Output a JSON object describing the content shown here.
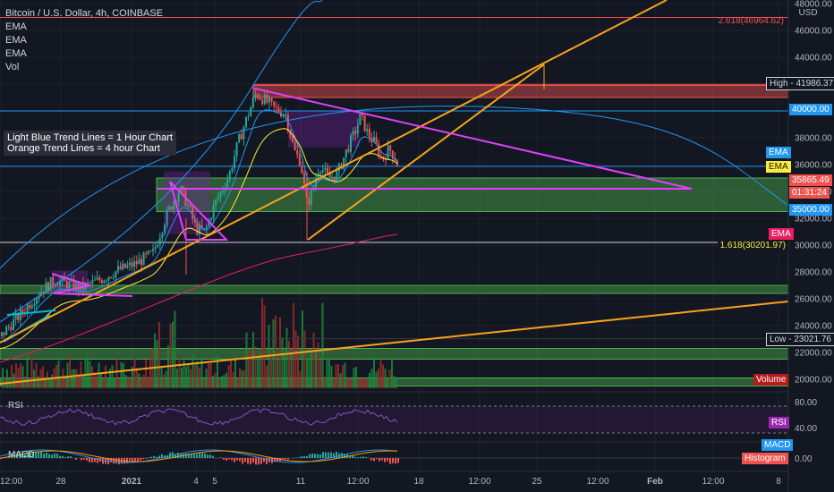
{
  "header": {
    "symbol": "Bitcoin / U.S. Dollar, 4h, COINBASE",
    "studies": [
      "EMA",
      "EMA",
      "EMA",
      "Vol"
    ]
  },
  "note": {
    "line1": "Light Blue Trend Lines = 1 Hour Chart",
    "line2": "Orange Trend Lines = 4 hour Chart"
  },
  "axis": {
    "currency": "USD",
    "price_ticks": [
      "48000.00",
      "46000.00",
      "44000.00",
      "42000.00",
      "40000.00",
      "38000.00",
      "36000.00",
      "34000.00",
      "32000.00",
      "30000.00",
      "28000.00",
      "26000.00",
      "24000.00",
      "22000.00",
      "20000.00"
    ],
    "time_ticks": [
      "12:00",
      "28",
      "2021",
      "4",
      "5",
      "11",
      "12:00",
      "18",
      "12:00",
      "25",
      "12:00",
      "Feb",
      "12:00",
      "8"
    ],
    "rsi_ticks": [
      "80.00",
      "40.00"
    ],
    "macd_tick": "0.00"
  },
  "labels": {
    "fib_2618": "2.618(46964.62)",
    "fib_1618": "1.618(30201.97)",
    "high": "High - 41986.37",
    "low": "Low - 23021.76",
    "level_40000": "40000.00",
    "level_35000": "35000.00",
    "ema1": "EMA",
    "ema2": "EMA",
    "ema3": "EMA",
    "last_price": "35865.49",
    "countdown": "01:31:24",
    "volume": "Volume",
    "rsi_pane": "RSI",
    "rsi_badge": "RSI",
    "macd_pane": "MACD",
    "macd_badge": "MACD",
    "hist_badge": "Histogram"
  },
  "colors": {
    "background": "#131722",
    "up": "#26a69a",
    "down": "#ef5350",
    "magenta_trend": "#e040fb",
    "orange_trend": "#f7a21b",
    "light_blue_trend": "#2196f3",
    "support_zone": "#4caf50",
    "resistance_zone": "#ef5350"
  },
  "chart_data": {
    "type": "candlestick",
    "title": "Bitcoin / U.S. Dollar, 4h, COINBASE",
    "ylim": [
      19500,
      48300
    ],
    "price_key_levels": {
      "fib_2618": 46964.62,
      "high": 41986.37,
      "level_40000": 40000,
      "last": 35865.49,
      "level_35000": 35000,
      "fib_1618": 30201.97,
      "low": 23021.76
    },
    "path": [
      [
        0,
        23200
      ],
      [
        10,
        24000
      ],
      [
        20,
        24700
      ],
      [
        30,
        25500
      ],
      [
        45,
        26600
      ],
      [
        60,
        27400
      ],
      [
        75,
        27100
      ],
      [
        90,
        26800
      ],
      [
        110,
        27400
      ],
      [
        130,
        28100
      ],
      [
        150,
        28600
      ],
      [
        170,
        29400
      ],
      [
        185,
        32200
      ],
      [
        200,
        34200
      ],
      [
        210,
        32800
      ],
      [
        218,
        31200
      ],
      [
        228,
        31000
      ],
      [
        240,
        33200
      ],
      [
        255,
        35200
      ],
      [
        265,
        37600
      ],
      [
        275,
        39500
      ],
      [
        285,
        41300
      ],
      [
        295,
        40800
      ],
      [
        305,
        40200
      ],
      [
        318,
        39800
      ],
      [
        328,
        37000
      ],
      [
        335,
        36200
      ],
      [
        342,
        33000
      ],
      [
        348,
        34000
      ],
      [
        356,
        36000
      ],
      [
        366,
        35000
      ],
      [
        376,
        35300
      ],
      [
        386,
        37000
      ],
      [
        396,
        38500
      ],
      [
        402,
        39600
      ],
      [
        410,
        38300
      ],
      [
        418,
        37600
      ],
      [
        426,
        36400
      ],
      [
        434,
        37200
      ],
      [
        440,
        36600
      ],
      [
        444,
        35865
      ]
    ],
    "support_zones": [
      [
        32500,
        35000
      ],
      [
        26400,
        27000
      ],
      [
        21500,
        22300
      ],
      [
        19500,
        20100
      ]
    ],
    "resistance_zones": [
      [
        41000,
        41900
      ]
    ]
  }
}
